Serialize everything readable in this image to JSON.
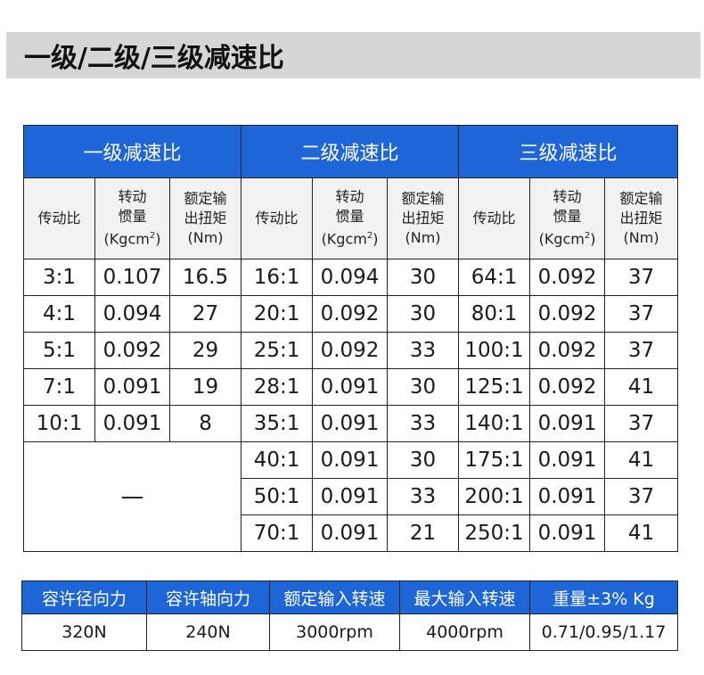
{
  "title": "一级/二级/三级减速比",
  "ratio_table": {
    "groups": [
      "一级减速比",
      "二级减速比",
      "三级减速比"
    ],
    "sub_headers": {
      "ratio": "传动比",
      "inertia_line1": "转动",
      "inertia_line2": "惯量",
      "inertia_unit": "(Kgcm",
      "inertia_sup": "2",
      "inertia_close": ")",
      "torque_line1": "额定输",
      "torque_line2": "出扭矩",
      "torque_unit": "(Nm)"
    },
    "stage1": [
      [
        "3:1",
        "0.107",
        "16.5"
      ],
      [
        "4:1",
        "0.094",
        "27"
      ],
      [
        "5:1",
        "0.092",
        "29"
      ],
      [
        "7:1",
        "0.091",
        "19"
      ],
      [
        "10:1",
        "0.091",
        "8"
      ]
    ],
    "stage1_empty": "—",
    "stage2": [
      [
        "16:1",
        "0.094",
        "30"
      ],
      [
        "20:1",
        "0.092",
        "30"
      ],
      [
        "25:1",
        "0.092",
        "33"
      ],
      [
        "28:1",
        "0.091",
        "30"
      ],
      [
        "35:1",
        "0.091",
        "33"
      ],
      [
        "40:1",
        "0.091",
        "30"
      ],
      [
        "50:1",
        "0.091",
        "33"
      ],
      [
        "70:1",
        "0.091",
        "21"
      ]
    ],
    "stage3": [
      [
        "64:1",
        "0.092",
        "37"
      ],
      [
        "80:1",
        "0.092",
        "37"
      ],
      [
        "100:1",
        "0.092",
        "37"
      ],
      [
        "125:1",
        "0.092",
        "41"
      ],
      [
        "140:1",
        "0.091",
        "37"
      ],
      [
        "175:1",
        "0.091",
        "41"
      ],
      [
        "200:1",
        "0.091",
        "37"
      ],
      [
        "250:1",
        "0.091",
        "41"
      ]
    ]
  },
  "spec_table": {
    "headers": [
      "容许径向力",
      "容许轴向力",
      "额定输入转速",
      "最大输入转速",
      "重量±3% Kg"
    ],
    "values": [
      "320N",
      "240N",
      "3000rpm",
      "4000rpm",
      "0.71/0.95/1.17"
    ]
  }
}
